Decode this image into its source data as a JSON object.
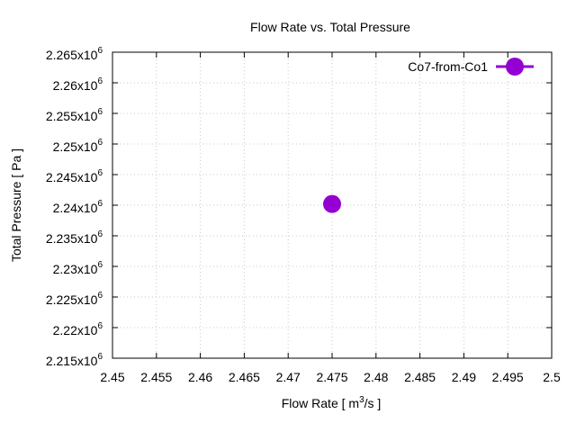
{
  "chart_data": {
    "type": "scatter",
    "title": "Flow Rate vs. Total Pressure",
    "xlabel": {
      "prefix": "Flow Rate [ m",
      "sup": "3",
      "suffix": "/s ]"
    },
    "ylabel": "Total Pressure [ Pa ]",
    "xlim": [
      2.45,
      2.5
    ],
    "ylim": [
      2215000,
      2265000
    ],
    "xticks": [
      "2.45",
      "2.455",
      "2.46",
      "2.465",
      "2.47",
      "2.475",
      "2.48",
      "2.485",
      "2.49",
      "2.495",
      "2.5"
    ],
    "yticks": [
      {
        "mantissa": "2.215x10",
        "exp": "6"
      },
      {
        "mantissa": "2.22x10",
        "exp": "6"
      },
      {
        "mantissa": "2.225x10",
        "exp": "6"
      },
      {
        "mantissa": "2.23x10",
        "exp": "6"
      },
      {
        "mantissa": "2.235x10",
        "exp": "6"
      },
      {
        "mantissa": "2.24x10",
        "exp": "6"
      },
      {
        "mantissa": "2.245x10",
        "exp": "6"
      },
      {
        "mantissa": "2.25x10",
        "exp": "6"
      },
      {
        "mantissa": "2.255x10",
        "exp": "6"
      },
      {
        "mantissa": "2.26x10",
        "exp": "6"
      },
      {
        "mantissa": "2.265x10",
        "exp": "6"
      }
    ],
    "grid": true,
    "legend_position": "top-right",
    "series": [
      {
        "name": "Co7-from-Co1",
        "color": "#9400d3",
        "points": [
          {
            "x": 2.475,
            "y": 2240200
          }
        ]
      }
    ]
  }
}
